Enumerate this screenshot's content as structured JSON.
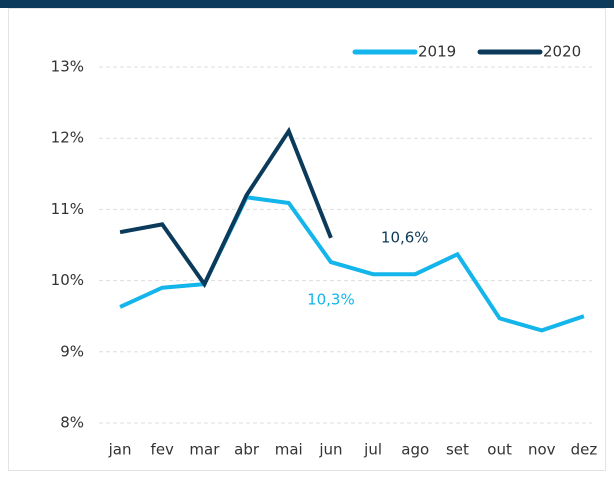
{
  "chart_data": {
    "type": "line",
    "categories": [
      "jan",
      "fev",
      "mar",
      "abr",
      "mai",
      "jun",
      "jul",
      "ago",
      "set",
      "out",
      "nov",
      "dez"
    ],
    "series": [
      {
        "name": "2019",
        "color": "#13b5ea",
        "values": [
          9.63,
          9.9,
          9.95,
          11.17,
          11.09,
          10.26,
          10.09,
          10.09,
          10.37,
          9.47,
          9.3,
          9.5
        ],
        "value_labels": [
          null,
          null,
          null,
          null,
          null,
          "10,3%",
          null,
          null,
          null,
          null,
          null,
          null
        ]
      },
      {
        "name": "2020",
        "color": "#0c3a5b",
        "values": [
          10.68,
          10.79,
          9.95,
          11.2,
          12.1,
          10.6,
          null,
          null,
          null,
          null,
          null,
          null
        ],
        "value_labels": [
          null,
          null,
          null,
          null,
          null,
          "10,6%",
          null,
          null,
          null,
          null,
          null,
          null
        ]
      }
    ],
    "ylim": [
      8,
      13
    ],
    "yticks": [
      {
        "value": 8,
        "label": "8%"
      },
      {
        "value": 9,
        "label": "9%"
      },
      {
        "value": 10,
        "label": "10%"
      },
      {
        "value": 11,
        "label": "11%"
      },
      {
        "value": 12,
        "label": "12%"
      },
      {
        "value": 13,
        "label": "13%"
      }
    ],
    "grid": true,
    "legend": "top-right"
  }
}
